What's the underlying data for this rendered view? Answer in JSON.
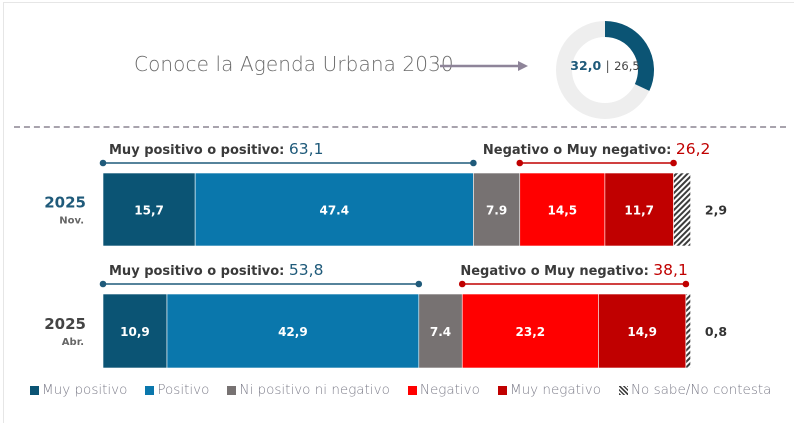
{
  "header": {
    "title": "Conoce la Agenda Urbana 2030",
    "donut": {
      "value_current": "32,0",
      "separator": "|",
      "value_previous": "26,5",
      "fill_percent": 32.0,
      "arc_color": "#0b5474",
      "track_color": "#eeeeee"
    }
  },
  "chart_data": {
    "type": "bar",
    "orientation": "horizontal-stacked-100",
    "title": "Conoce la Agenda Urbana 2030",
    "categories": [
      {
        "year": "2025",
        "period": "Nov."
      },
      {
        "year": "2025",
        "period": "Abr."
      }
    ],
    "series": [
      {
        "name": "Muy positivo",
        "color": "#0b5474",
        "values": [
          15.7,
          10.9
        ],
        "labels": [
          "15,7",
          "10,9"
        ]
      },
      {
        "name": "Positivo",
        "color": "#0a77ac",
        "values": [
          47.4,
          42.9
        ],
        "labels": [
          "47.4",
          "42,9"
        ]
      },
      {
        "name": "Ni positivo ni negativo",
        "color": "#777272",
        "values": [
          7.9,
          7.4
        ],
        "labels": [
          "7.9",
          "7.4"
        ]
      },
      {
        "name": "Negativo",
        "color": "#ff0000",
        "values": [
          14.5,
          23.2
        ],
        "labels": [
          "14,5",
          "23,2"
        ]
      },
      {
        "name": "Muy negativo",
        "color": "#c00000",
        "values": [
          11.7,
          14.9
        ],
        "labels": [
          "11,7",
          "14,9"
        ]
      },
      {
        "name": "No sabe/No contesta",
        "color": "hatch",
        "values": [
          2.9,
          0.8
        ],
        "labels": [
          "2,9",
          "0,8"
        ]
      }
    ],
    "brackets": [
      {
        "positive": {
          "label": "Muy positivo o positivo:",
          "value": "63,1",
          "color": "#1f5a7a"
        },
        "negative": {
          "label": "Negativo o Muy negativo:",
          "value": "26,2",
          "color": "#c00000"
        }
      },
      {
        "positive": {
          "label": "Muy positivo o positivo:",
          "value": "53,8",
          "color": "#1f5a7a"
        },
        "negative": {
          "label": "Negativo o Muy negativo:",
          "value": "38,1",
          "color": "#c00000"
        }
      }
    ],
    "year_label_colors": [
      "#1f5a7a",
      "#444444"
    ],
    "legend_position": "bottom",
    "xlim": [
      0,
      100
    ]
  },
  "legend": [
    {
      "label": "Muy positivo",
      "color": "#0b5474"
    },
    {
      "label": "Positivo",
      "color": "#0a77ac"
    },
    {
      "label": "Ni positivo ni negativo",
      "color": "#777272"
    },
    {
      "label": "Negativo",
      "color": "#ff0000"
    },
    {
      "label": "Muy negativo",
      "color": "#c00000"
    },
    {
      "label": "No sabe/No contesta",
      "color": "hatch"
    }
  ]
}
